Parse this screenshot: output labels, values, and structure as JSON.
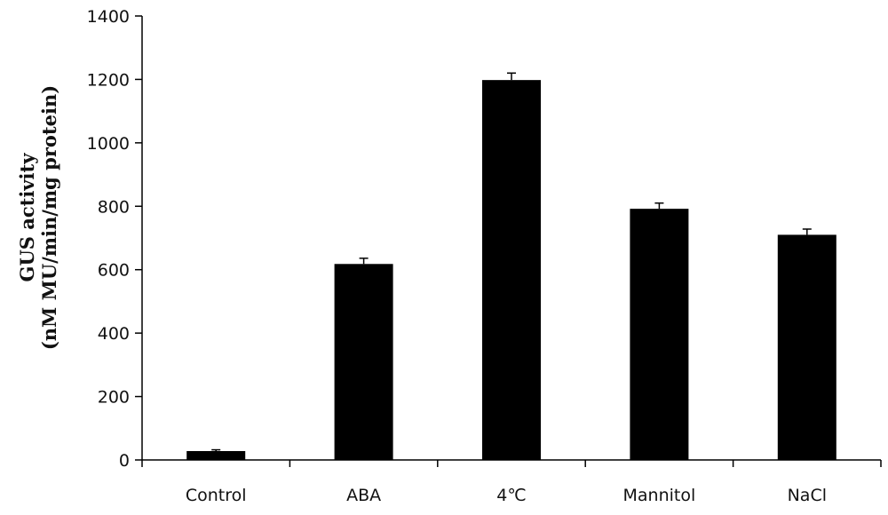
{
  "chart_data": {
    "type": "bar",
    "title": "",
    "xlabel": "",
    "ylabel_lines": [
      "GUS activity",
      "(nM MU/min/mg protein)"
    ],
    "categories": [
      "Control",
      "ABA",
      "4℃",
      "Mannitol",
      "NaCl"
    ],
    "values": [
      28,
      618,
      1198,
      792,
      710
    ],
    "errors": [
      4,
      18,
      22,
      18,
      18
    ],
    "ylim": [
      0,
      1400
    ],
    "yticks": [
      0,
      200,
      400,
      600,
      800,
      1000,
      1200,
      1400
    ],
    "grid": false,
    "legend": "none",
    "bar_color": "#000000"
  }
}
